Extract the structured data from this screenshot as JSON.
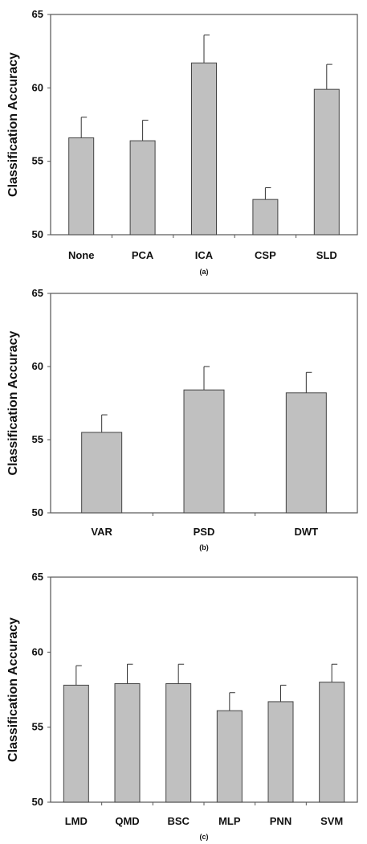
{
  "chart_data": [
    {
      "type": "bar",
      "caption": "(a)",
      "ylabel": "Classification Accuracy",
      "ylim": [
        50,
        65
      ],
      "yticks": [
        50,
        55,
        60,
        65
      ],
      "categories": [
        "None",
        "PCA",
        "ICA",
        "CSP",
        "SLD"
      ],
      "values": [
        56.6,
        56.4,
        61.7,
        52.4,
        59.9
      ],
      "errors": [
        1.4,
        1.4,
        1.9,
        0.8,
        1.7
      ],
      "bar_color": "#c0c0c0",
      "grid": false
    },
    {
      "type": "bar",
      "caption": "(b)",
      "ylabel": "Classification Accuracy",
      "ylim": [
        50,
        65
      ],
      "yticks": [
        50,
        55,
        60,
        65
      ],
      "categories": [
        "VAR",
        "PSD",
        "DWT"
      ],
      "values": [
        55.5,
        58.4,
        58.2
      ],
      "errors": [
        1.2,
        1.6,
        1.4
      ],
      "bar_color": "#c0c0c0",
      "grid": false
    },
    {
      "type": "bar",
      "caption": "(c)",
      "ylabel": "Classification Accuracy",
      "ylim": [
        50,
        65
      ],
      "yticks": [
        50,
        55,
        60,
        65
      ],
      "categories": [
        "LMD",
        "QMD",
        "BSC",
        "MLP",
        "PNN",
        "SVM"
      ],
      "values": [
        57.8,
        57.9,
        57.9,
        56.1,
        56.7,
        58.0
      ],
      "errors": [
        1.3,
        1.3,
        1.3,
        1.2,
        1.1,
        1.2
      ],
      "bar_color": "#c0c0c0",
      "grid": false
    }
  ]
}
